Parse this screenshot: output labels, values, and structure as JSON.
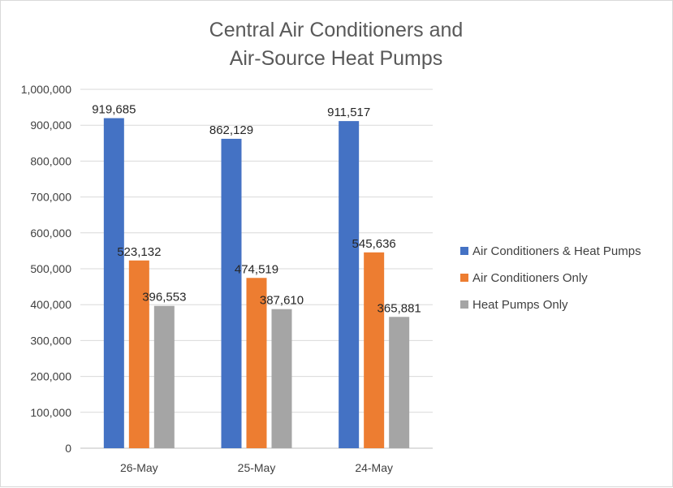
{
  "chart_data": {
    "type": "bar",
    "title": [
      "Central Air Conditioners and",
      "Air-Source Heat Pumps"
    ],
    "xlabel": "",
    "ylabel": "",
    "categories": [
      "26-May",
      "25-May",
      "24-May"
    ],
    "series": [
      {
        "name": "Air Conditioners & Heat Pumps",
        "color": "#4472c4",
        "values": [
          919685,
          862129,
          911517
        ]
      },
      {
        "name": "Air Conditioners Only",
        "color": "#ed7d31",
        "values": [
          523132,
          474519,
          545636
        ]
      },
      {
        "name": "Heat Pumps Only",
        "color": "#a5a5a5",
        "values": [
          396553,
          387610,
          365881
        ]
      }
    ],
    "ylim": [
      0,
      1000000
    ],
    "yticks": [
      0,
      100000,
      200000,
      300000,
      400000,
      500000,
      600000,
      700000,
      800000,
      900000,
      1000000
    ],
    "ytick_labels": [
      "0",
      "100,000",
      "200,000",
      "300,000",
      "400,000",
      "500,000",
      "600,000",
      "700,000",
      "800,000",
      "900,000",
      "1,000,000"
    ],
    "data_labels": [
      [
        "919,685",
        "862,129",
        "911,517"
      ],
      [
        "523,132",
        "474,519",
        "545,636"
      ],
      [
        "396,553",
        "387,610",
        "365,881"
      ]
    ],
    "grid": true,
    "legend_position": "right"
  }
}
